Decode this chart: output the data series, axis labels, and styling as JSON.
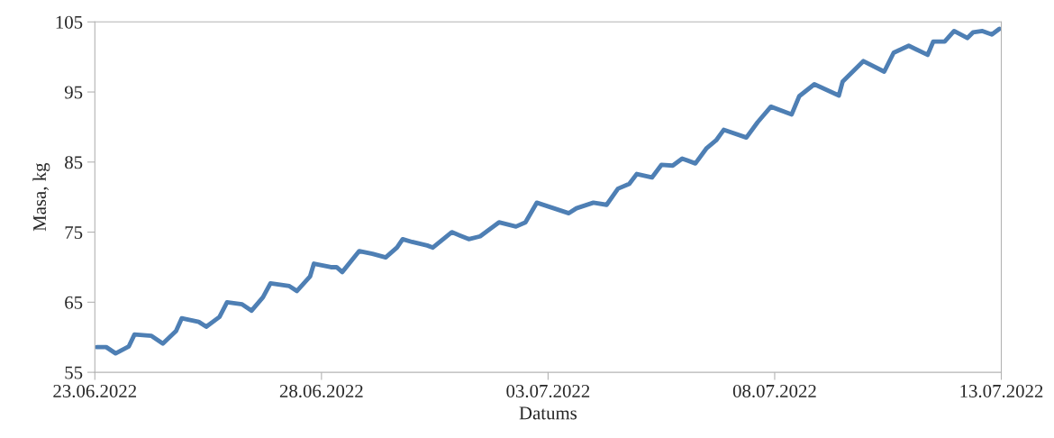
{
  "chart_data": {
    "type": "line",
    "xlabel": "Datums",
    "ylabel": "Masa, kg",
    "xlim": [
      "2022-06-23",
      "2022-07-13"
    ],
    "xticks": [
      {
        "value": "2022-06-23",
        "label": "23.06.2022"
      },
      {
        "value": "2022-06-28",
        "label": "28.06.2022"
      },
      {
        "value": "2022-07-03",
        "label": "03.07.2022"
      },
      {
        "value": "2022-07-08",
        "label": "08.07.2022"
      },
      {
        "value": "2022-07-13",
        "label": "13.07.2022"
      }
    ],
    "ylim": [
      55,
      105
    ],
    "yticks": [
      55,
      65,
      75,
      85,
      95,
      105
    ],
    "grid": false,
    "legend": false,
    "series": [
      {
        "color": "#4e7fb4",
        "x": [
          "2022-06-23T01:00",
          "2022-06-23T06:00",
          "2022-06-23T11:00",
          "2022-06-23T18:00",
          "2022-06-23T21:00",
          "2022-06-24T06:00",
          "2022-06-24T12:00",
          "2022-06-24T19:00",
          "2022-06-24T22:00",
          "2022-06-25T07:00",
          "2022-06-25T11:00",
          "2022-06-25T18:00",
          "2022-06-25T22:00",
          "2022-06-26T06:00",
          "2022-06-26T11:00",
          "2022-06-26T17:00",
          "2022-06-26T21:00",
          "2022-06-27T07:00",
          "2022-06-27T11:00",
          "2022-06-27T18:00",
          "2022-06-27T20:00",
          "2022-06-28T05:00",
          "2022-06-28T08:00",
          "2022-06-28T11:00",
          "2022-06-28T20:00",
          "2022-06-29T03:00",
          "2022-06-29T10:00",
          "2022-06-29T16:00",
          "2022-06-29T19:00",
          "2022-06-30T00:00",
          "2022-06-30T08:00",
          "2022-06-30T11:00",
          "2022-06-30T21:00",
          "2022-07-01T06:00",
          "2022-07-01T12:00",
          "2022-07-01T22:00",
          "2022-07-02T07:00",
          "2022-07-02T12:00",
          "2022-07-02T18:00",
          "2022-07-03T11:00",
          "2022-07-03T15:00",
          "2022-07-04T00:00",
          "2022-07-04T07:00",
          "2022-07-04T13:00",
          "2022-07-04T19:00",
          "2022-07-04T23:00",
          "2022-07-05T07:00",
          "2022-07-05T12:00",
          "2022-07-05T18:00",
          "2022-07-05T23:00",
          "2022-07-06T06:00",
          "2022-07-06T12:00",
          "2022-07-06T17:00",
          "2022-07-06T21:00",
          "2022-07-07T09:00",
          "2022-07-07T15:00",
          "2022-07-07T22:00",
          "2022-07-08T09:00",
          "2022-07-08T13:00",
          "2022-07-08T21:00",
          "2022-07-09T10:00",
          "2022-07-09T12:00",
          "2022-07-09T23:00",
          "2022-07-10T10:00",
          "2022-07-10T15:00",
          "2022-07-10T23:00",
          "2022-07-11T09:00",
          "2022-07-11T12:00",
          "2022-07-11T18:00",
          "2022-07-11T23:00",
          "2022-07-12T06:00",
          "2022-07-12T09:00",
          "2022-07-12T14:00",
          "2022-07-12T19:00",
          "2022-07-12T23:00"
        ],
        "values": [
          58.6,
          58.6,
          57.7,
          58.7,
          60.4,
          60.2,
          59.1,
          60.9,
          62.7,
          62.2,
          61.5,
          62.9,
          65.0,
          64.7,
          63.8,
          65.7,
          67.7,
          67.3,
          66.6,
          68.7,
          70.5,
          70.0,
          70.0,
          69.3,
          72.3,
          71.9,
          71.4,
          72.8,
          74.0,
          73.6,
          73.1,
          72.8,
          75.0,
          74.0,
          74.4,
          76.4,
          75.8,
          76.4,
          79.2,
          77.7,
          78.4,
          79.2,
          78.9,
          81.2,
          81.9,
          83.3,
          82.8,
          84.6,
          84.5,
          85.5,
          84.8,
          87.0,
          88.1,
          89.6,
          88.5,
          90.7,
          92.9,
          91.8,
          94.4,
          96.1,
          94.5,
          96.5,
          99.4,
          97.9,
          100.6,
          101.6,
          100.3,
          102.2,
          102.2,
          103.7,
          102.7,
          103.5,
          103.7,
          103.2,
          104.0
        ]
      }
    ]
  }
}
